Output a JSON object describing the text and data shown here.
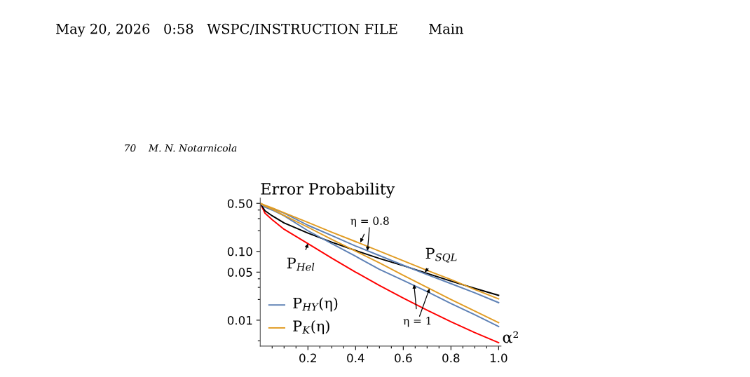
{
  "chart_data": {
    "type": "line",
    "title": "Error Probability",
    "xlabel": "α²",
    "log": "y",
    "xlim": [
      0,
      1.01
    ],
    "ylim": [
      0.0042,
      0.6
    ],
    "xticks": [
      {
        "value": 0.05,
        "label": null
      },
      {
        "value": 0.1,
        "label": null
      },
      {
        "value": 0.15,
        "label": null
      },
      0.2,
      {
        "value": 0.25,
        "label": null
      },
      {
        "value": 0.3,
        "label": null
      },
      {
        "value": 0.35,
        "label": null
      },
      0.4,
      {
        "value": 0.45,
        "label": null
      },
      {
        "value": 0.5,
        "label": null
      },
      {
        "value": 0.55,
        "label": null
      },
      0.6,
      {
        "value": 0.65,
        "label": null
      },
      {
        "value": 0.7,
        "label": null
      },
      {
        "value": 0.75,
        "label": null
      },
      0.8,
      {
        "value": 0.85,
        "label": null
      },
      {
        "value": 0.9,
        "label": null
      },
      {
        "value": 0.95,
        "label": null
      },
      {
        "value": 1.0,
        "label": "1.0"
      }
    ],
    "yticks": [
      {
        "value": 0.005,
        "label": null
      },
      {
        "value": 0.01,
        "label": "0.01"
      },
      {
        "value": 0.02,
        "label": null
      },
      {
        "value": 0.03,
        "label": null
      },
      {
        "value": 0.04,
        "label": null
      },
      {
        "value": 0.05,
        "label": "0.05"
      },
      {
        "value": 0.1,
        "label": "0.10"
      },
      {
        "value": 0.2,
        "label": null
      },
      {
        "value": 0.3,
        "label": null
      },
      {
        "value": 0.4,
        "label": null
      },
      {
        "value": 0.5,
        "label": "0.50"
      }
    ],
    "grid": false,
    "legend": "bottom left",
    "marker": "none",
    "line_style": "solid",
    "x": [
      0,
      0.02,
      0.05,
      0.1,
      0.2,
      0.3,
      0.4,
      0.5,
      0.6,
      0.7,
      0.8,
      0.9,
      1.0
    ],
    "series": [
      {
        "color": "#ff0000",
        "values": [
          0.5,
          0.36,
          0.29,
          0.21,
          0.13,
          0.08,
          0.05,
          0.032,
          0.021,
          0.014,
          0.0095,
          0.0066,
          0.0047
        ]
      },
      {
        "color": "#000000",
        "values": [
          0.5,
          0.39,
          0.33,
          0.26,
          0.185,
          0.136,
          0.103,
          0.079,
          0.062,
          0.048,
          0.037,
          0.029,
          0.023
        ]
      },
      {
        "name": "P$_{HY}$(η)",
        "color": "#5e81b5",
        "values": [
          0.5,
          0.44,
          0.4,
          0.33,
          0.2,
          0.13,
          0.085,
          0.055,
          0.038,
          0.026,
          0.0175,
          0.012,
          0.0081
        ]
      },
      {
        "color": "#5e81b5",
        "values": [
          0.5,
          0.46,
          0.42,
          0.36,
          0.24,
          0.17,
          0.12,
          0.087,
          0.063,
          0.046,
          0.034,
          0.025,
          0.018
        ]
      },
      {
        "name": "P$_{K}$(η)",
        "color": "#e19c24",
        "values": [
          0.5,
          0.46,
          0.41,
          0.335,
          0.225,
          0.15,
          0.101,
          0.068,
          0.045,
          0.03,
          0.02,
          0.0136,
          0.0092
        ]
      },
      {
        "color": "#e19c24",
        "values": [
          0.5,
          0.47,
          0.43,
          0.365,
          0.264,
          0.19,
          0.139,
          0.101,
          0.073,
          0.053,
          0.039,
          0.028,
          0.0204
        ]
      }
    ],
    "annotations": [
      {
        "text": "η = 0.8",
        "x": 0.42,
        "y": 0.135
      },
      {
        "text": "η = 1",
        "x": 0.645,
        "y": 0.033
      },
      {
        "text": "P$_{SQL}$",
        "x": 0.69,
        "y": 0.05
      },
      {
        "text": "P$_{Hel}$",
        "x": 0.2,
        "y": 0.13
      },
      "May 20, 2026   0:58   WSPC/INSTRUCTION FILE       Main",
      "70    M. N. Notarnicola"
    ]
  }
}
